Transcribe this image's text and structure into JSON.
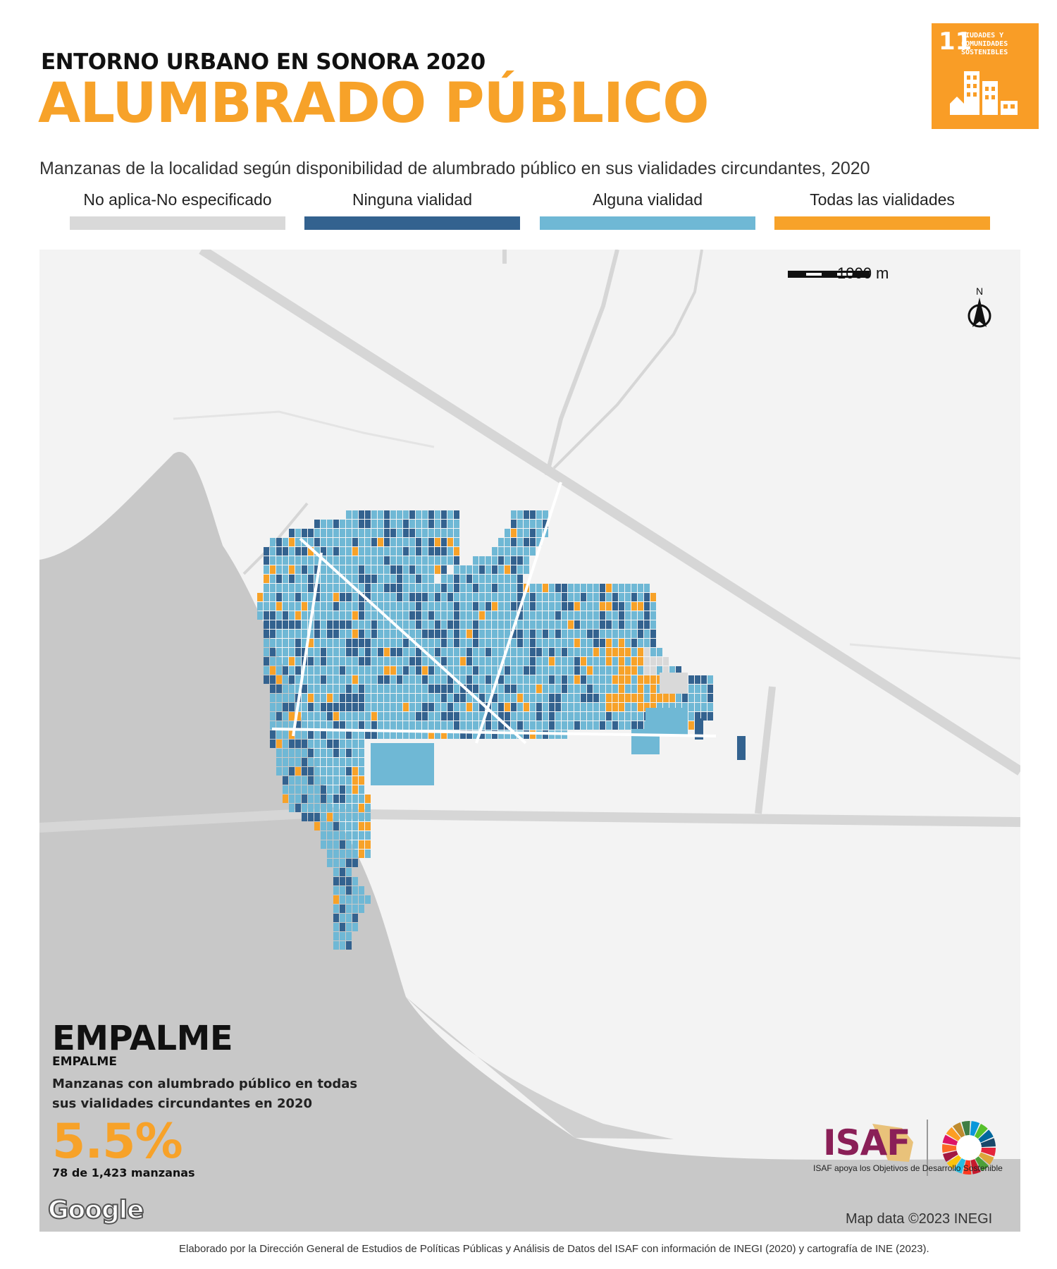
{
  "header": {
    "kicker": "ENTORNO URBANO EN SONORA 2020",
    "title": "ALUMBRADO PÚBLICO",
    "subtitle": "Manzanas de la localidad según disponibilidad de alumbrado público en sus vialidades circundantes, 2020"
  },
  "sdg_badge": {
    "number": "11",
    "text": "CIUDADES Y\nCOMUNIDADES\nSOSTENIBLES",
    "color": "#f99d26"
  },
  "legend": [
    {
      "label": "No aplica-No especificado",
      "color": "#d9d9d9"
    },
    {
      "label": "Ninguna vialidad",
      "color": "#33628f"
    },
    {
      "label": "Alguna vialidad",
      "color": "#6fb8d5"
    },
    {
      "label": "Todas las vialidades",
      "color": "#f7a229"
    }
  ],
  "map": {
    "scale_label": "1000 m",
    "north_label": "N",
    "attribution": "Map data ©2023 INEGI",
    "provider": "Google",
    "water_color": "#c8c8c8",
    "land_color": "#f3f3f3",
    "road_color": "#d6d6d6"
  },
  "panel": {
    "locality_big": "EMPALME",
    "locality_small": "EMPALME",
    "description": "Manzanas con alumbrado público en todas sus vialidades circundantes en 2020",
    "percentage": "5.5%",
    "count_text": "78 de 1,423 manzanas"
  },
  "stats": {
    "blocks_all_lit": 78,
    "total_blocks": 1423,
    "share_pct": 5.5
  },
  "logos": {
    "isaf": "ISAF",
    "isaf_tagline": "ISAF apoya los Objetivos de Desarrollo Sostenible"
  },
  "footer": {
    "credit": "Elaborado por la Dirección General de Estudios de Políticas Públicas y Análisis de Datos del ISAF con información de INEGI (2020) y cartografía de INE (2023)."
  }
}
